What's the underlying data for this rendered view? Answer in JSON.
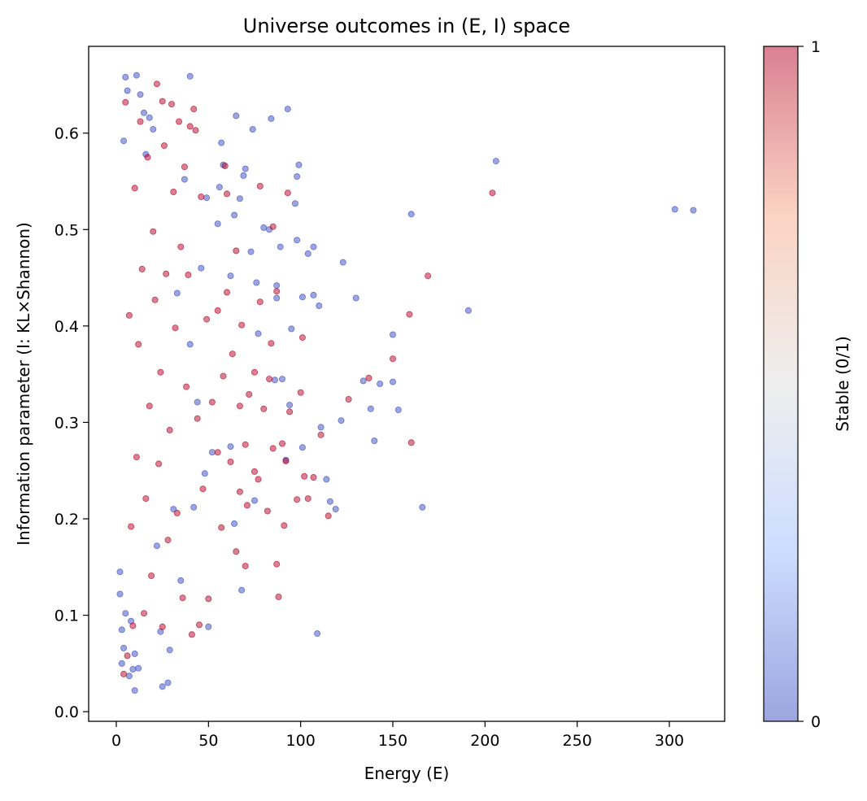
{
  "chart_data": {
    "type": "scatter",
    "title": "Universe outcomes in (E, I) space",
    "xlabel": "Energy (E)",
    "ylabel": "Information parameter (I: KL×Shannon)",
    "xlim": [
      -15,
      330
    ],
    "ylim": [
      -0.01,
      0.69
    ],
    "xticks": [
      0,
      50,
      100,
      150,
      200,
      250,
      300
    ],
    "yticks": [
      0.0,
      0.1,
      0.2,
      0.3,
      0.4,
      0.5,
      0.6
    ],
    "grid": false,
    "colorbar": {
      "label": "Stable (0/1)",
      "ticks": [
        0,
        1
      ],
      "colormap": "coolwarm",
      "low_color": "#3b4cc0",
      "mid_color": "#dddddd",
      "high_color": "#b40426"
    },
    "marker_alpha": 0.5,
    "series": [
      {
        "name": "0",
        "color": "#3b4cc0",
        "points": [
          [
            303,
            0.521
          ],
          [
            313,
            0.52
          ],
          [
            206,
            0.571
          ],
          [
            191,
            0.416
          ],
          [
            166,
            0.212
          ],
          [
            160,
            0.516
          ],
          [
            153,
            0.313
          ],
          [
            150,
            0.391
          ],
          [
            150,
            0.342
          ],
          [
            143,
            0.34
          ],
          [
            140,
            0.281
          ],
          [
            138,
            0.314
          ],
          [
            134,
            0.343
          ],
          [
            130,
            0.429
          ],
          [
            123,
            0.466
          ],
          [
            122,
            0.302
          ],
          [
            119,
            0.21
          ],
          [
            116,
            0.218
          ],
          [
            114,
            0.241
          ],
          [
            111,
            0.295
          ],
          [
            110,
            0.421
          ],
          [
            109,
            0.081
          ],
          [
            107,
            0.482
          ],
          [
            107,
            0.432
          ],
          [
            104,
            0.475
          ],
          [
            101,
            0.43
          ],
          [
            101,
            0.274
          ],
          [
            99,
            0.567
          ],
          [
            98,
            0.555
          ],
          [
            98,
            0.489
          ],
          [
            97,
            0.527
          ],
          [
            95,
            0.397
          ],
          [
            94,
            0.318
          ],
          [
            93,
            0.625
          ],
          [
            92,
            0.261
          ],
          [
            90,
            0.345
          ],
          [
            89,
            0.482
          ],
          [
            87,
            0.442
          ],
          [
            87,
            0.429
          ],
          [
            86,
            0.344
          ],
          [
            84,
            0.615
          ],
          [
            83,
            0.5
          ],
          [
            80,
            0.502
          ],
          [
            77,
            0.392
          ],
          [
            76,
            0.445
          ],
          [
            75,
            0.219
          ],
          [
            74,
            0.604
          ],
          [
            73,
            0.477
          ],
          [
            70,
            0.563
          ],
          [
            69,
            0.556
          ],
          [
            68,
            0.126
          ],
          [
            67,
            0.532
          ],
          [
            65,
            0.618
          ],
          [
            64,
            0.515
          ],
          [
            64,
            0.195
          ],
          [
            62,
            0.275
          ],
          [
            62,
            0.452
          ],
          [
            58,
            0.567
          ],
          [
            57,
            0.59
          ],
          [
            56,
            0.544
          ],
          [
            55,
            0.506
          ],
          [
            52,
            0.269
          ],
          [
            50,
            0.088
          ],
          [
            49,
            0.533
          ],
          [
            48,
            0.247
          ],
          [
            46,
            0.46
          ],
          [
            44,
            0.321
          ],
          [
            42,
            0.212
          ],
          [
            40,
            0.659
          ],
          [
            40,
            0.381
          ],
          [
            37,
            0.552
          ],
          [
            35,
            0.136
          ],
          [
            33,
            0.434
          ],
          [
            31,
            0.21
          ],
          [
            29,
            0.064
          ],
          [
            28,
            0.03
          ],
          [
            25,
            0.026
          ],
          [
            24,
            0.083
          ],
          [
            22,
            0.172
          ],
          [
            20,
            0.604
          ],
          [
            18,
            0.616
          ],
          [
            16,
            0.578
          ],
          [
            15,
            0.621
          ],
          [
            13,
            0.64
          ],
          [
            12,
            0.045
          ],
          [
            11,
            0.66
          ],
          [
            10,
            0.022
          ],
          [
            10,
            0.06
          ],
          [
            9,
            0.044
          ],
          [
            8,
            0.094
          ],
          [
            7,
            0.037
          ],
          [
            6,
            0.644
          ],
          [
            5,
            0.658
          ],
          [
            5,
            0.102
          ],
          [
            4,
            0.592
          ],
          [
            4,
            0.066
          ],
          [
            3,
            0.05
          ],
          [
            3,
            0.085
          ],
          [
            2,
            0.145
          ],
          [
            2,
            0.122
          ]
        ]
      },
      {
        "name": "1",
        "color": "#b40426",
        "points": [
          [
            204,
            0.538
          ],
          [
            169,
            0.452
          ],
          [
            160,
            0.279
          ],
          [
            159,
            0.412
          ],
          [
            150,
            0.366
          ],
          [
            137,
            0.346
          ],
          [
            126,
            0.324
          ],
          [
            115,
            0.203
          ],
          [
            111,
            0.287
          ],
          [
            107,
            0.243
          ],
          [
            104,
            0.221
          ],
          [
            102,
            0.244
          ],
          [
            101,
            0.388
          ],
          [
            100,
            0.331
          ],
          [
            98,
            0.22
          ],
          [
            94,
            0.311
          ],
          [
            93,
            0.538
          ],
          [
            92,
            0.26
          ],
          [
            91,
            0.193
          ],
          [
            90,
            0.278
          ],
          [
            88,
            0.119
          ],
          [
            87,
            0.153
          ],
          [
            87,
            0.436
          ],
          [
            85,
            0.273
          ],
          [
            85,
            0.503
          ],
          [
            84,
            0.382
          ],
          [
            83,
            0.345
          ],
          [
            82,
            0.208
          ],
          [
            80,
            0.314
          ],
          [
            78,
            0.545
          ],
          [
            78,
            0.425
          ],
          [
            77,
            0.241
          ],
          [
            75,
            0.249
          ],
          [
            75,
            0.352
          ],
          [
            72,
            0.329
          ],
          [
            71,
            0.214
          ],
          [
            70,
            0.151
          ],
          [
            70,
            0.277
          ],
          [
            68,
            0.401
          ],
          [
            67,
            0.317
          ],
          [
            67,
            0.228
          ],
          [
            65,
            0.166
          ],
          [
            65,
            0.478
          ],
          [
            63,
            0.371
          ],
          [
            62,
            0.259
          ],
          [
            60,
            0.435
          ],
          [
            60,
            0.537
          ],
          [
            59,
            0.566
          ],
          [
            58,
            0.348
          ],
          [
            57,
            0.191
          ],
          [
            55,
            0.269
          ],
          [
            55,
            0.416
          ],
          [
            52,
            0.321
          ],
          [
            50,
            0.117
          ],
          [
            49,
            0.407
          ],
          [
            47,
            0.231
          ],
          [
            46,
            0.534
          ],
          [
            45,
            0.09
          ],
          [
            44,
            0.304
          ],
          [
            43,
            0.603
          ],
          [
            42,
            0.625
          ],
          [
            41,
            0.08
          ],
          [
            40,
            0.607
          ],
          [
            39,
            0.453
          ],
          [
            38,
            0.337
          ],
          [
            37,
            0.565
          ],
          [
            36,
            0.118
          ],
          [
            35,
            0.482
          ],
          [
            34,
            0.612
          ],
          [
            33,
            0.206
          ],
          [
            32,
            0.398
          ],
          [
            31,
            0.539
          ],
          [
            30,
            0.63
          ],
          [
            29,
            0.292
          ],
          [
            28,
            0.178
          ],
          [
            27,
            0.454
          ],
          [
            26,
            0.587
          ],
          [
            25,
            0.633
          ],
          [
            25,
            0.088
          ],
          [
            24,
            0.352
          ],
          [
            23,
            0.257
          ],
          [
            22,
            0.651
          ],
          [
            21,
            0.427
          ],
          [
            20,
            0.498
          ],
          [
            19,
            0.141
          ],
          [
            18,
            0.317
          ],
          [
            17,
            0.575
          ],
          [
            16,
            0.221
          ],
          [
            15,
            0.102
          ],
          [
            14,
            0.459
          ],
          [
            13,
            0.612
          ],
          [
            12,
            0.381
          ],
          [
            11,
            0.264
          ],
          [
            10,
            0.543
          ],
          [
            9,
            0.089
          ],
          [
            8,
            0.192
          ],
          [
            7,
            0.411
          ],
          [
            6,
            0.058
          ],
          [
            5,
            0.632
          ],
          [
            4,
            0.039
          ]
        ]
      }
    ]
  }
}
